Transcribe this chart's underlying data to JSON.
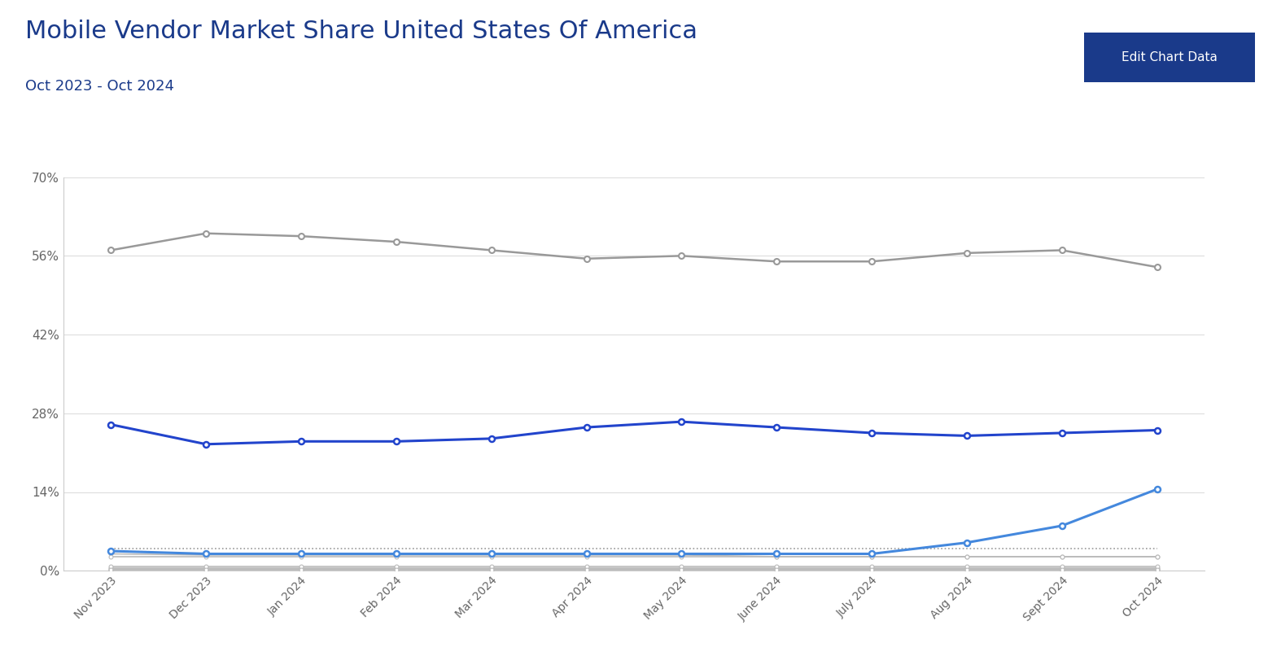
{
  "title": "Mobile Vendor Market Share United States Of America",
  "subtitle": "Oct 2023 - Oct 2024",
  "x_labels": [
    "Nov 2023",
    "Dec 2023",
    "Jan 2024",
    "Feb 2024",
    "Mar 2024",
    "Apr 2024",
    "May 2024",
    "June 2024",
    "July 2024",
    "Aug 2024",
    "Sept 2024",
    "Oct 2024"
  ],
  "apple": [
    57.0,
    60.0,
    59.5,
    58.5,
    57.0,
    55.5,
    56.0,
    55.0,
    55.0,
    56.5,
    57.0,
    54.0
  ],
  "samsung": [
    26.0,
    22.5,
    23.0,
    23.0,
    23.5,
    25.5,
    26.5,
    25.5,
    24.5,
    24.0,
    24.5,
    25.0
  ],
  "unknown": [
    3.0,
    2.8,
    2.8,
    2.8,
    2.8,
    2.8,
    2.8,
    2.5,
    2.5,
    2.5,
    2.5,
    2.5
  ],
  "google": [
    3.5,
    3.0,
    3.0,
    3.0,
    3.0,
    3.0,
    3.0,
    3.0,
    3.0,
    5.0,
    8.0,
    14.5
  ],
  "motorola": [
    2.5,
    2.5,
    2.5,
    2.5,
    2.5,
    2.5,
    2.5,
    2.5,
    2.5,
    2.5,
    2.5,
    2.5
  ],
  "xiaomi": [
    0.5,
    0.5,
    0.5,
    0.5,
    0.5,
    0.5,
    0.5,
    0.5,
    0.5,
    0.5,
    0.5,
    0.5
  ],
  "oneplus": [
    0.3,
    0.3,
    0.3,
    0.3,
    0.3,
    0.3,
    0.3,
    0.3,
    0.3,
    0.3,
    0.3,
    0.3
  ],
  "lg": [
    0.8,
    0.8,
    0.8,
    0.8,
    0.8,
    0.8,
    0.8,
    0.8,
    0.8,
    0.8,
    0.8,
    0.8
  ],
  "vivo": [
    0.1,
    0.1,
    0.1,
    0.1,
    0.1,
    0.1,
    0.1,
    0.1,
    0.1,
    0.1,
    0.1,
    0.1
  ],
  "oppo": [
    0.2,
    0.2,
    0.2,
    0.2,
    0.2,
    0.2,
    0.2,
    0.2,
    0.2,
    0.2,
    0.2,
    0.2
  ],
  "other": [
    4.0,
    4.0,
    4.0,
    4.0,
    4.0,
    4.0,
    4.0,
    4.0,
    4.0,
    4.0,
    4.0,
    4.0
  ],
  "ylim": [
    0,
    70
  ],
  "yticks": [
    0,
    14,
    28,
    42,
    56,
    70
  ],
  "ytick_labels": [
    "0%",
    "14%",
    "28%",
    "42%",
    "56%",
    "70%"
  ],
  "apple_color": "#999999",
  "samsung_color": "#2244cc",
  "google_color": "#4488dd",
  "minor_color": "#bbbbbb",
  "other_color": "#999999",
  "background_color": "#ffffff",
  "grid_color": "#dddddd",
  "title_color": "#1a3a8a",
  "subtitle_color": "#1a3a8a",
  "button_bg": "#1a3a8a",
  "button_text": "Edit Chart Data",
  "axis_label_color": "#666666"
}
